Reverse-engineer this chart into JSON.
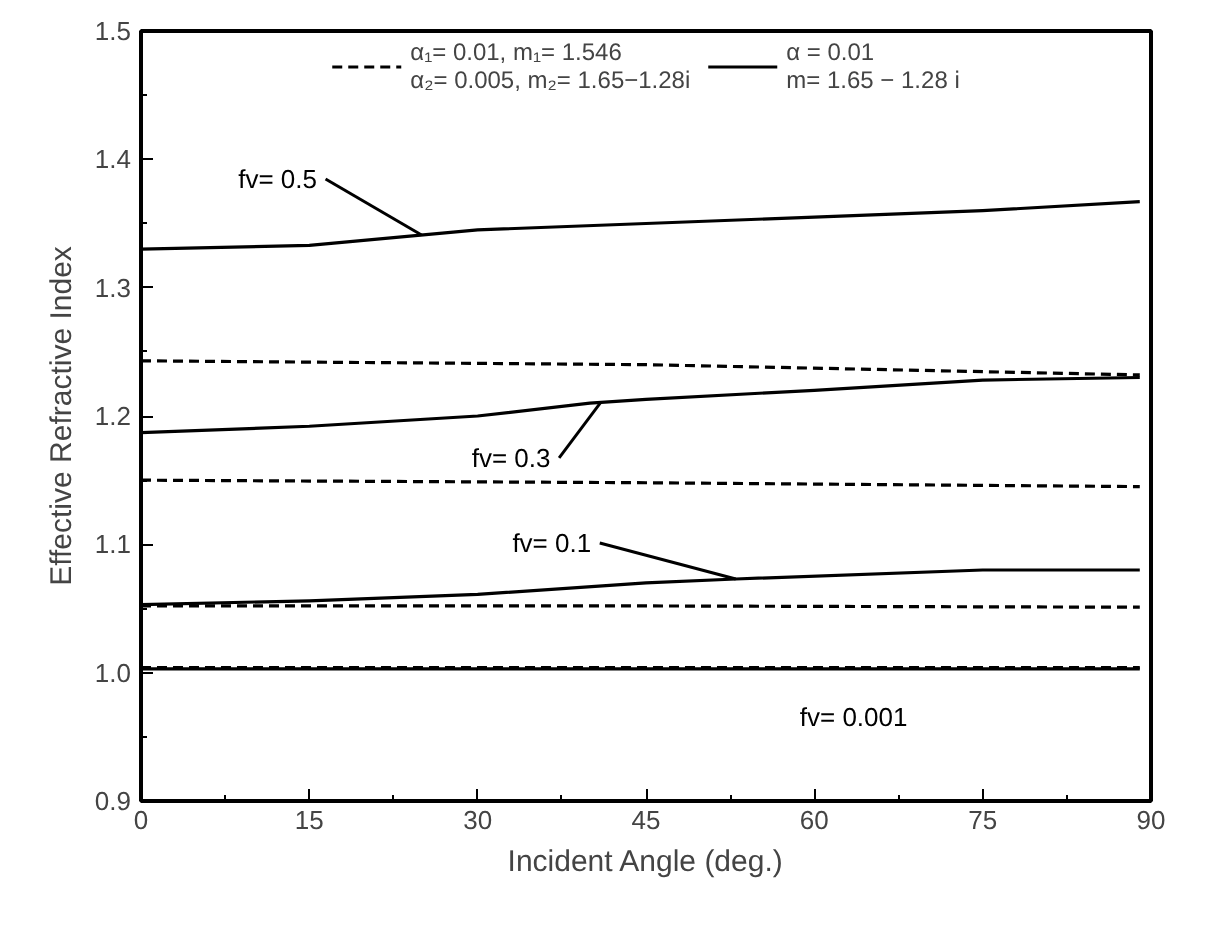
{
  "chart_data": {
    "type": "line",
    "xlabel": "Incident Angle (deg.)",
    "ylabel": "Effective Refractive Index",
    "xlim": [
      0,
      90
    ],
    "xticks": [
      0,
      15,
      30,
      45,
      60,
      75,
      90
    ],
    "ylim": [
      0.9,
      1.5
    ],
    "yticks": [
      0.9,
      {
        "value": 1,
        "label": "1.0"
      },
      1.1,
      1.2,
      1.3,
      1.4,
      1.5
    ],
    "grid": false,
    "legend": "top",
    "marker": "none",
    "series": [
      {
        "name": "α₁= 0.01, m₁= 1.546\nα₂= 0.005, m₂= 1.65−1.28i",
        "line_style": "dashed",
        "color": "#000000",
        "x": [
          0,
          45,
          89
        ],
        "values": [
          1.243,
          1.24,
          1.232
        ]
      },
      {
        "line_style": "dashed",
        "color": "#000000",
        "x": [
          0,
          45,
          89
        ],
        "values": [
          1.15,
          1.148,
          1.145
        ]
      },
      {
        "line_style": "dashed",
        "color": "#000000",
        "x": [
          0,
          45,
          89
        ],
        "values": [
          1.052,
          1.052,
          1.051
        ]
      },
      {
        "line_style": "dashed",
        "color": "#000000",
        "x": [
          0,
          45,
          89
        ],
        "values": [
          1.004,
          1.004,
          1.004
        ]
      },
      {
        "name": "α = 0.01\nm= 1.65 − 1.28 i",
        "line_style": "solid",
        "color": "#000000",
        "x": [
          0,
          15,
          30,
          45,
          60,
          75,
          89
        ],
        "values": [
          1.33,
          1.333,
          1.345,
          1.35,
          1.355,
          1.36,
          1.367
        ]
      },
      {
        "line_style": "solid",
        "color": "#000000",
        "x": [
          0,
          15,
          30,
          40,
          45,
          60,
          75,
          89
        ],
        "values": [
          1.187,
          1.192,
          1.2,
          1.21,
          1.213,
          1.22,
          1.228,
          1.23
        ]
      },
      {
        "line_style": "solid",
        "color": "#000000",
        "x": [
          0,
          15,
          30,
          45,
          53,
          75,
          89
        ],
        "values": [
          1.053,
          1.056,
          1.061,
          1.07,
          1.073,
          1.08,
          1.08
        ]
      },
      {
        "line_style": "solid",
        "color": "#000000",
        "x": [
          0,
          45,
          89
        ],
        "values": [
          1.003,
          1.003,
          1.003
        ]
      }
    ],
    "annotations": [
      {
        "text": "fv= 0.5",
        "x": 25,
        "y": 1.341
      },
      {
        "text": "fv= 0.3",
        "x": 41,
        "y": 1.211
      },
      {
        "text": "fv= 0.1",
        "x": 53,
        "y": 1.073
      },
      {
        "text": "fv= 0.001",
        "x": 63.5,
        "y": 1.003
      }
    ]
  }
}
